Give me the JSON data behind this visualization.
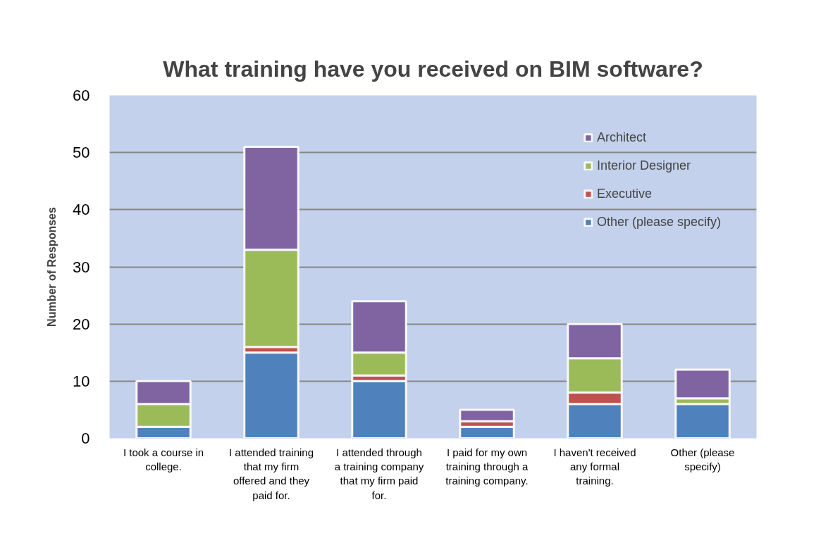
{
  "chart_data": {
    "type": "bar",
    "title": "What training have you received on BIM software?",
    "ylabel": "Number of Responses",
    "categories": [
      "I took a course in college.",
      "I attended training that my firm offered and they paid for.",
      "I attended through a training company that my firm paid for.",
      "I paid for my own training through a training company.",
      "I haven't received any formal training.",
      "Other (please specify)"
    ],
    "series": [
      {
        "name": "Other (please specify)",
        "color": "#4f81bd",
        "values": [
          2,
          15,
          10,
          2,
          6,
          6
        ]
      },
      {
        "name": "Executive",
        "color": "#c0504d",
        "values": [
          0,
          1,
          1,
          1,
          2,
          0
        ]
      },
      {
        "name": "Interior Designer",
        "color": "#9bbb59",
        "values": [
          4,
          17,
          4,
          0,
          6,
          1
        ]
      },
      {
        "name": "Architect",
        "color": "#8064a2",
        "values": [
          4,
          18,
          9,
          2,
          6,
          5
        ]
      }
    ],
    "stacked": true,
    "ylim": [
      0,
      60
    ],
    "yticks": [
      0,
      10,
      20,
      30,
      40,
      50,
      60
    ],
    "grid": "y",
    "legend": "top right"
  }
}
